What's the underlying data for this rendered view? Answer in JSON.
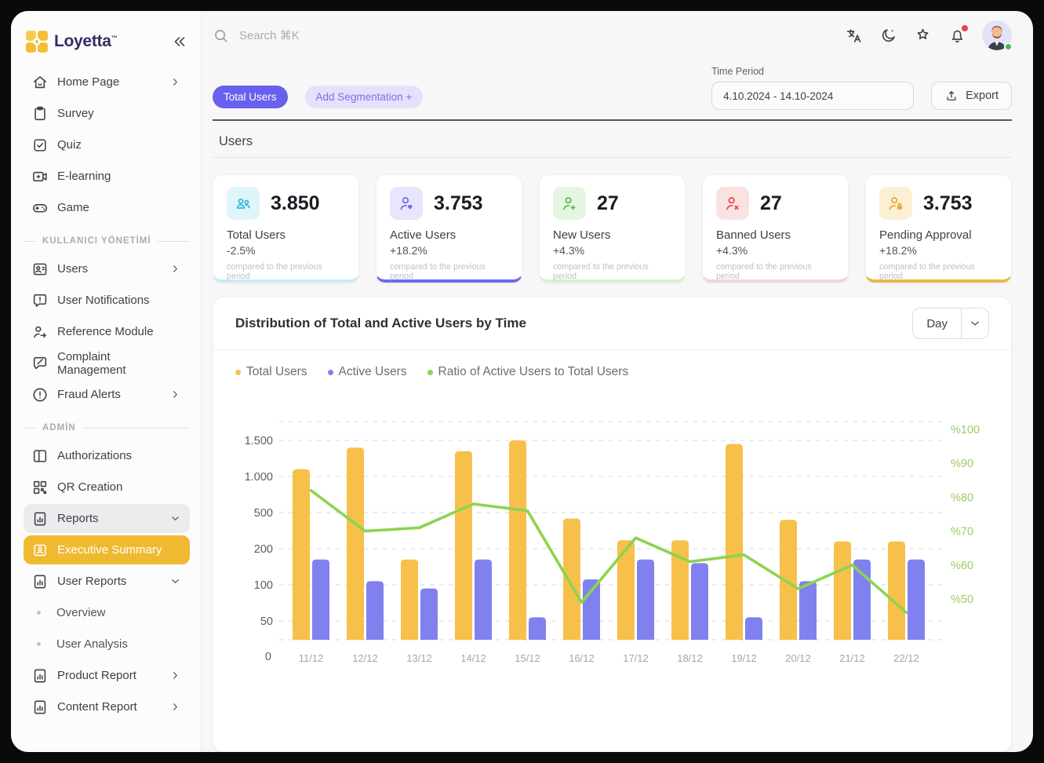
{
  "brand": {
    "name": "Loyetta",
    "trademark": "™"
  },
  "topbar": {
    "search_placeholder": "Search ⌘K",
    "icons": [
      {
        "name": "translate"
      },
      {
        "name": "dark-mode"
      },
      {
        "name": "favorites"
      },
      {
        "name": "notifications",
        "badge": true
      },
      {
        "name": "avatar",
        "status": "online"
      }
    ]
  },
  "filters": {
    "active_tab": "Total Users",
    "add_segmentation": "Add Segmentation +",
    "time_period_label": "Time Period",
    "time_period_value": "4.10.2024 - 14.10-2024",
    "export_label": "Export"
  },
  "section": {
    "title": "Users"
  },
  "stats": {
    "cards": [
      {
        "icon": "users-group",
        "icon_color": "#35B7D6",
        "icon_bg": "#DFF5FA",
        "accent": "#C9EBF3",
        "value": "3.850",
        "label": "Total Users",
        "delta": "-2.5%",
        "note": "compared to the previous period"
      },
      {
        "icon": "user-heart",
        "icon_color": "#6F6AEE",
        "icon_bg": "#E7E6FC",
        "accent": "#6F6AEE",
        "value": "3.753",
        "label": "Active Users",
        "delta": "+18.2%",
        "note": "compared to the previous period"
      },
      {
        "icon": "user-plus",
        "icon_color": "#56B94C",
        "icon_bg": "#E4F6DF",
        "accent": "#D8F0CE",
        "value": "27",
        "label": "New Users",
        "delta": "+4.3%",
        "note": "compared to the previous period"
      },
      {
        "icon": "user-x",
        "icon_color": "#E4484F",
        "icon_bg": "#FBE2E2",
        "accent": "#F6D3D3",
        "value": "27",
        "label": "Banned Users",
        "delta": "+4.3%",
        "note": "compared to the previous period"
      },
      {
        "icon": "user-lock",
        "icon_color": "#E8A63B",
        "icon_bg": "#FBF0D2",
        "accent": "#EAB945",
        "value": "3.753",
        "label": "Pending Approval",
        "delta": "+18.2%",
        "note": "compared to the previous period"
      }
    ]
  },
  "chart_card": {
    "title": "Distribution of Total and Active Users by Time",
    "range_value": "Day"
  },
  "chart_data": {
    "type": "bar",
    "subtype": "grouped-bars-with-line",
    "title": "Distribution of Total and Active Users by Time",
    "categories": [
      "11/12",
      "12/12",
      "13/12",
      "14/12",
      "15/12",
      "16/12",
      "17/12",
      "18/12",
      "19/12",
      "20/12",
      "21/12",
      "22/12"
    ],
    "series": [
      {
        "name": "Total Users",
        "type": "bar",
        "color": "#F7C04A",
        "axis": "left",
        "values": [
          1100,
          1400,
          170,
          1350,
          1500,
          450,
          270,
          270,
          1450,
          440,
          260,
          260
        ]
      },
      {
        "name": "Active Users",
        "type": "bar",
        "color": "#8081EE",
        "axis": "left",
        "values": [
          170,
          110,
          95,
          170,
          55,
          115,
          170,
          160,
          55,
          110,
          170,
          170
        ]
      },
      {
        "name": "Ratio of Active Users to Total Users",
        "type": "line",
        "color": "#8CD450",
        "axis": "right",
        "values": [
          82,
          70,
          71,
          78,
          76,
          49,
          68,
          61,
          63,
          53,
          60,
          46
        ]
      }
    ],
    "left_axis": {
      "tick_labels": [
        "1.500",
        "1.000",
        "500",
        "200",
        "100",
        "50"
      ],
      "tick_values": [
        1500,
        1000,
        500,
        200,
        100,
        50
      ],
      "zero_label": "0",
      "scale": "non-linear"
    },
    "right_axis": {
      "tick_labels": [
        "%100",
        "%90",
        "%80",
        "%70",
        "%60",
        "%50"
      ],
      "tick_values": [
        100,
        90,
        80,
        70,
        60,
        50
      ],
      "unit": "percent"
    },
    "grid": "dashed-horizontal",
    "legend_position": "top-left",
    "xlabel": "",
    "ylabel": ""
  },
  "sidebar": {
    "sections": [
      {
        "label": "",
        "items": [
          {
            "icon": "home",
            "label": "Home Page",
            "chevron": "right"
          },
          {
            "icon": "clipboard",
            "label": "Survey"
          },
          {
            "icon": "checkbox",
            "label": "Quiz"
          },
          {
            "icon": "video-plus",
            "label": "E-learning"
          },
          {
            "icon": "gamepad",
            "label": "Game"
          }
        ]
      },
      {
        "label": "KULLANICI YÖNETİMİ",
        "items": [
          {
            "icon": "id-card",
            "label": "Users",
            "chevron": "right"
          },
          {
            "icon": "message-alert",
            "label": "User Notifications"
          },
          {
            "icon": "user-arrow",
            "label": "Reference Module"
          },
          {
            "icon": "message-slash",
            "label": "Complaint Management"
          },
          {
            "icon": "alert-circle",
            "label": "Fraud Alerts",
            "chevron": "right"
          }
        ]
      },
      {
        "label": "ADMİN",
        "items": [
          {
            "icon": "columns",
            "label": "Authorizations"
          },
          {
            "icon": "qr-code",
            "label": "QR Creation"
          },
          {
            "icon": "report-doc",
            "label": "Reports",
            "chevron": "down",
            "state": "expanded"
          },
          {
            "icon": "id-badge",
            "label": "Executive Summary",
            "state": "active"
          },
          {
            "icon": "report-doc",
            "label": "User Reports",
            "chevron": "down"
          },
          {
            "icon": "dot",
            "label": "Overview",
            "sub": true
          },
          {
            "icon": "dot",
            "label": "User Analysis",
            "sub": true
          },
          {
            "icon": "report-doc",
            "label": "Product Report",
            "chevron": "right"
          },
          {
            "icon": "report-doc",
            "label": "Content Report",
            "chevron": "right"
          }
        ]
      }
    ]
  }
}
